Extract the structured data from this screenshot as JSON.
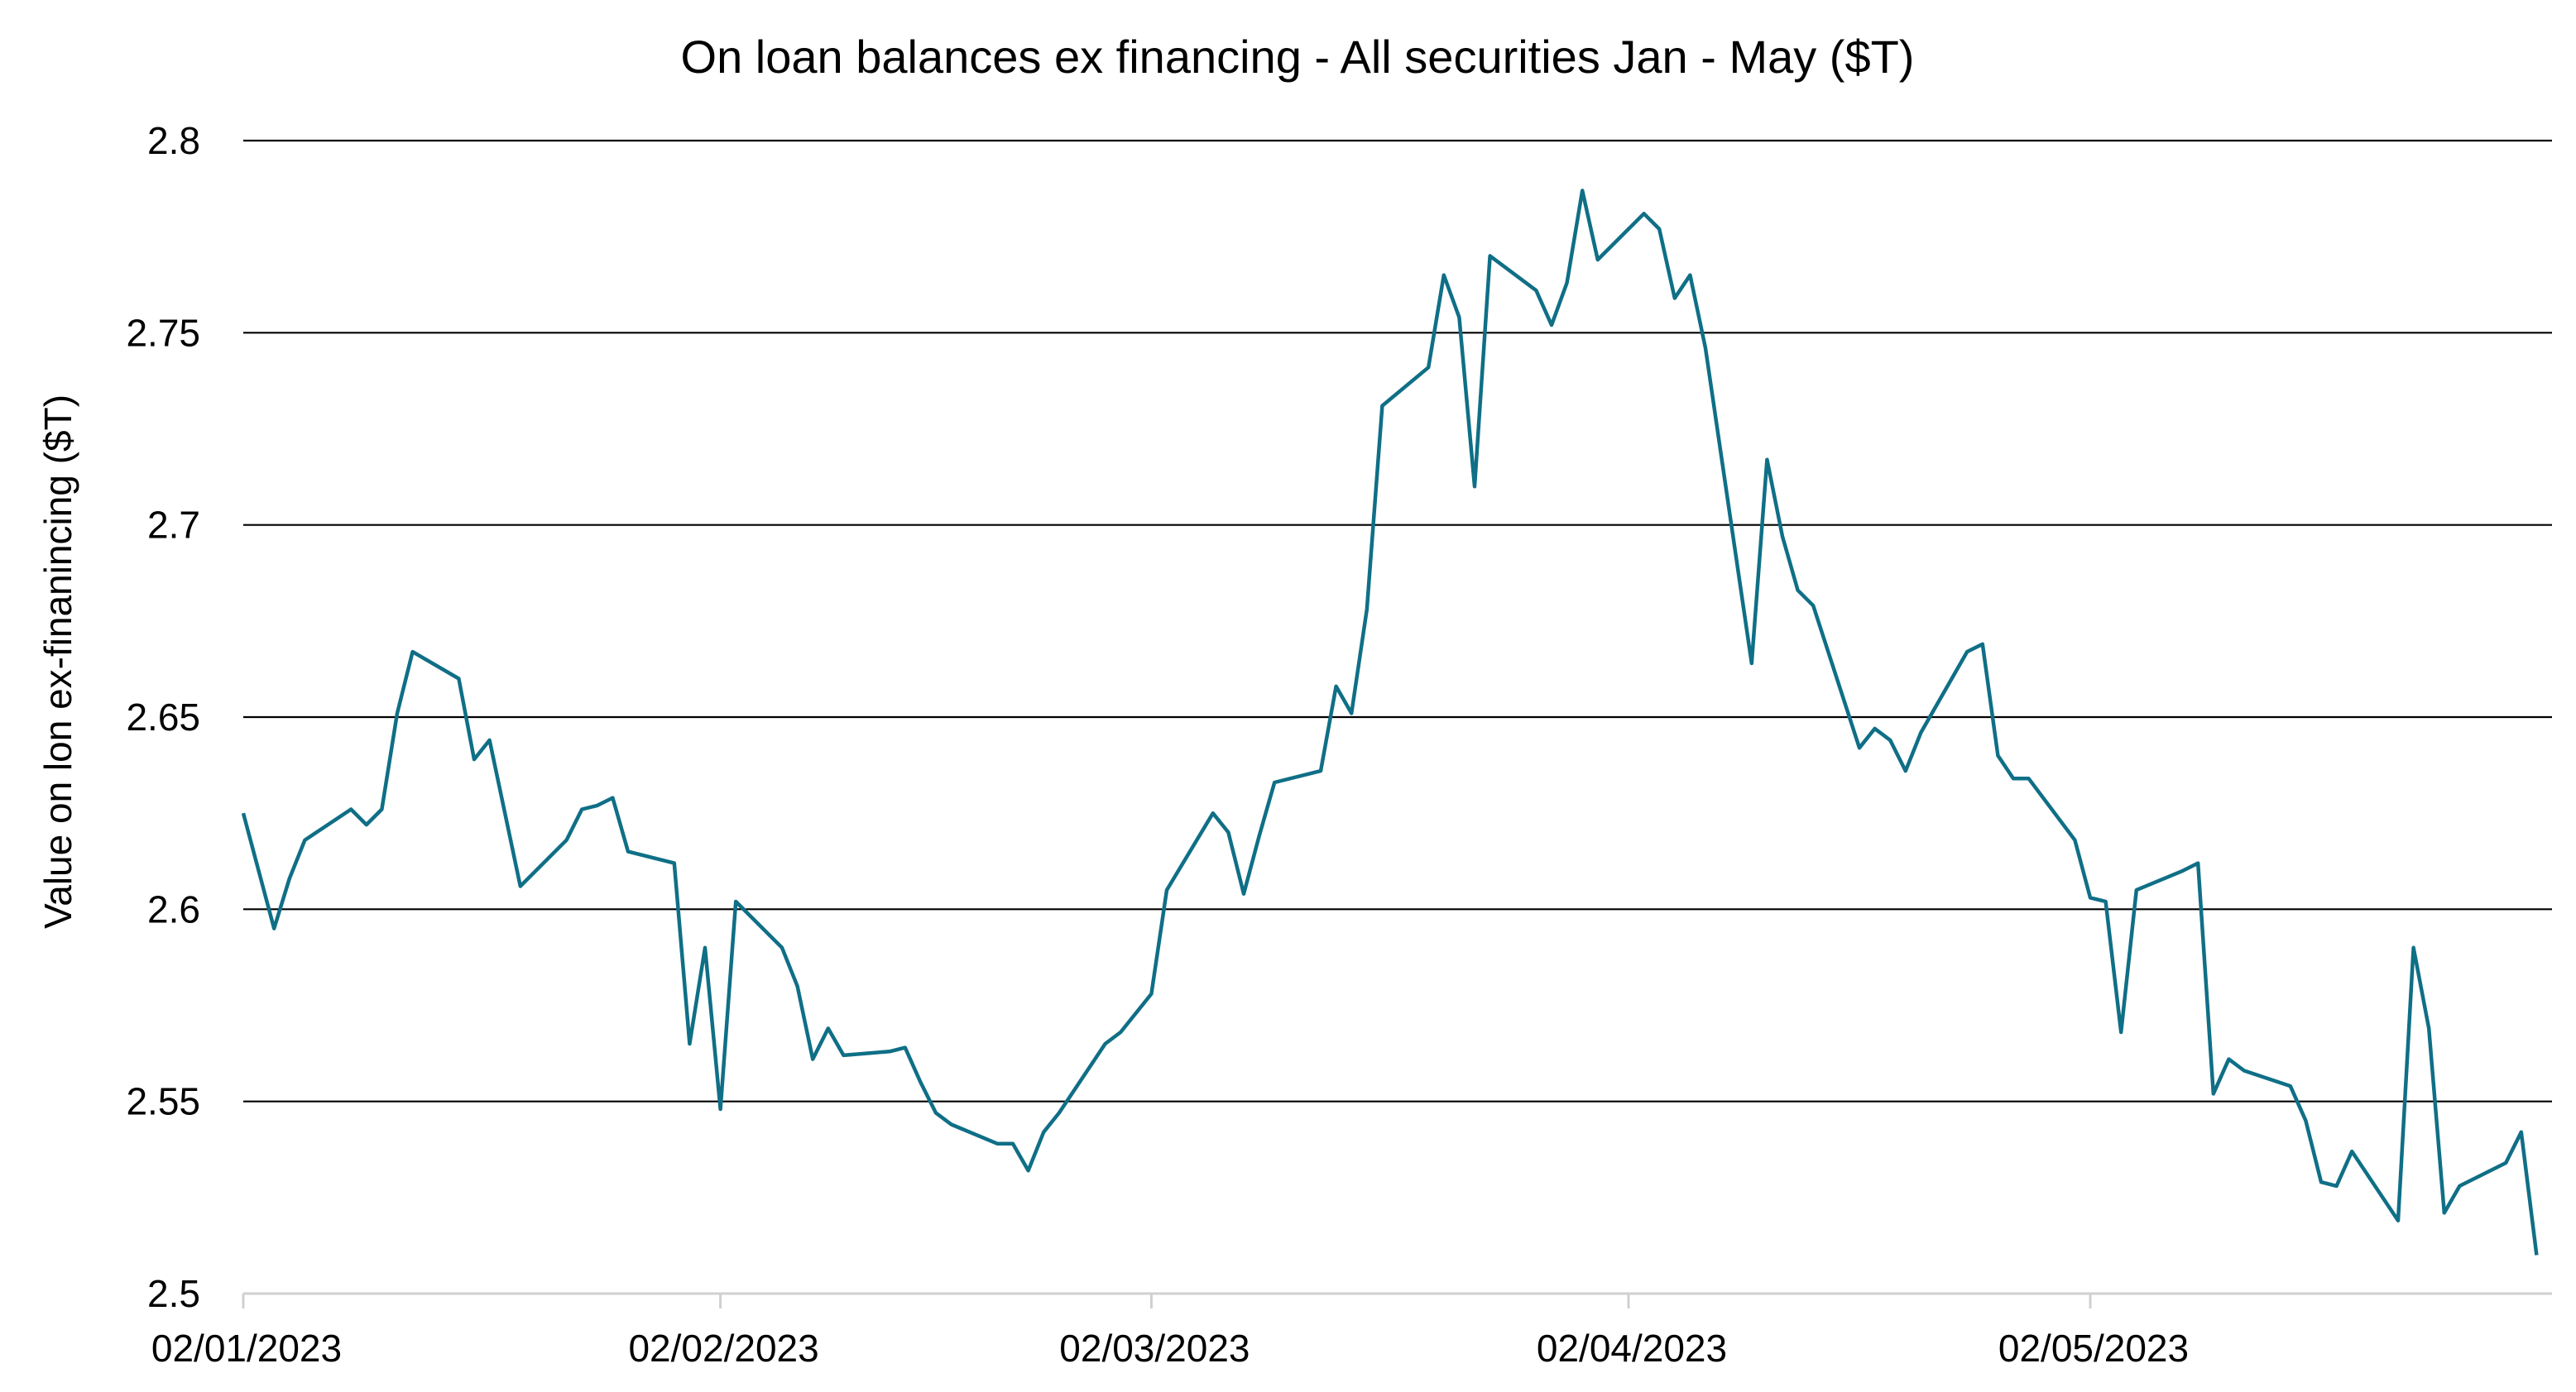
{
  "chart_data": {
    "type": "line",
    "title": "On loan balances ex financing - All securities Jan - May ($T)",
    "xlabel": "",
    "ylabel": "Value on lon ex-finanincing ($T)",
    "ylim": [
      2.5,
      2.8
    ],
    "xlim": [
      "2023-01-02",
      "2023-06-01"
    ],
    "yticks": [
      "2.5",
      "2.55",
      "2.6",
      "2.65",
      "2.7",
      "2.75",
      "2.8"
    ],
    "xticks": [
      {
        "date": "2023-01-02",
        "label": "02/01/2023"
      },
      {
        "date": "2023-02-02",
        "label": "02/02/2023"
      },
      {
        "date": "2023-03-02",
        "label": "02/03/2023"
      },
      {
        "date": "2023-04-02",
        "label": "02/04/2023"
      },
      {
        "date": "2023-05-02",
        "label": "02/05/2023"
      }
    ],
    "grid": "horizontal",
    "line_color": "#0f6f86",
    "series": [
      {
        "x": [
          "2023-01-02",
          "2023-01-04",
          "2023-01-05",
          "2023-01-06",
          "2023-01-09",
          "2023-01-10",
          "2023-01-11",
          "2023-01-12",
          "2023-01-13",
          "2023-01-16",
          "2023-01-17",
          "2023-01-18",
          "2023-01-19",
          "2023-01-20",
          "2023-01-23",
          "2023-01-24",
          "2023-01-25",
          "2023-01-26",
          "2023-01-27",
          "2023-01-30",
          "2023-01-31",
          "2023-02-01",
          "2023-02-02",
          "2023-02-03",
          "2023-02-06",
          "2023-02-07",
          "2023-02-08",
          "2023-02-09",
          "2023-02-10",
          "2023-02-13",
          "2023-02-14",
          "2023-02-15",
          "2023-02-16",
          "2023-02-17",
          "2023-02-20",
          "2023-02-21",
          "2023-02-22",
          "2023-02-23",
          "2023-02-24",
          "2023-02-27",
          "2023-02-28",
          "2023-03-02",
          "2023-03-03",
          "2023-03-06",
          "2023-03-07",
          "2023-03-08",
          "2023-03-09",
          "2023-03-10",
          "2023-03-13",
          "2023-03-14",
          "2023-03-15",
          "2023-03-16",
          "2023-03-17",
          "2023-03-20",
          "2023-03-21",
          "2023-03-22",
          "2023-03-23",
          "2023-03-24",
          "2023-03-27",
          "2023-03-28",
          "2023-03-29",
          "2023-03-30",
          "2023-03-31",
          "2023-04-03",
          "2023-04-04",
          "2023-04-05",
          "2023-04-06",
          "2023-04-07",
          "2023-04-10",
          "2023-04-11",
          "2023-04-12",
          "2023-04-13",
          "2023-04-14",
          "2023-04-17",
          "2023-04-18",
          "2023-04-19",
          "2023-04-20",
          "2023-04-21",
          "2023-04-24",
          "2023-04-25",
          "2023-04-26",
          "2023-04-27",
          "2023-04-28",
          "2023-05-01",
          "2023-05-02",
          "2023-05-03",
          "2023-05-04",
          "2023-05-05",
          "2023-05-08",
          "2023-05-09",
          "2023-05-10",
          "2023-05-11",
          "2023-05-12",
          "2023-05-15",
          "2023-05-16",
          "2023-05-17",
          "2023-05-18",
          "2023-05-19",
          "2023-05-22",
          "2023-05-23",
          "2023-05-24",
          "2023-05-25",
          "2023-05-26",
          "2023-05-29",
          "2023-05-30",
          "2023-05-31"
        ],
        "values": [
          2.625,
          2.595,
          2.608,
          2.618,
          2.626,
          2.622,
          2.626,
          2.651,
          2.667,
          2.66,
          2.639,
          2.644,
          2.625,
          2.606,
          2.618,
          2.626,
          2.627,
          2.629,
          2.615,
          2.612,
          2.565,
          2.59,
          2.548,
          2.602,
          2.59,
          2.58,
          2.561,
          2.569,
          2.562,
          2.563,
          2.564,
          2.555,
          2.547,
          2.544,
          2.539,
          2.539,
          2.532,
          2.542,
          2.547,
          2.565,
          2.568,
          2.578,
          2.605,
          2.625,
          2.62,
          2.604,
          2.619,
          2.633,
          2.636,
          2.658,
          2.651,
          2.678,
          2.731,
          2.741,
          2.765,
          2.754,
          2.71,
          2.77,
          2.761,
          2.752,
          2.763,
          2.787,
          2.769,
          2.781,
          2.777,
          2.759,
          2.765,
          2.746,
          2.664,
          2.717,
          2.697,
          2.683,
          2.679,
          2.642,
          2.647,
          2.644,
          2.636,
          2.646,
          2.667,
          2.669,
          2.64,
          2.634,
          2.634,
          2.618,
          2.603,
          2.602,
          2.568,
          2.605,
          2.61,
          2.612,
          2.552,
          2.561,
          2.558,
          2.554,
          2.545,
          2.529,
          2.528,
          2.537,
          2.519,
          2.59,
          2.569,
          2.521,
          2.528,
          2.534,
          2.542,
          2.51
        ]
      }
    ]
  }
}
